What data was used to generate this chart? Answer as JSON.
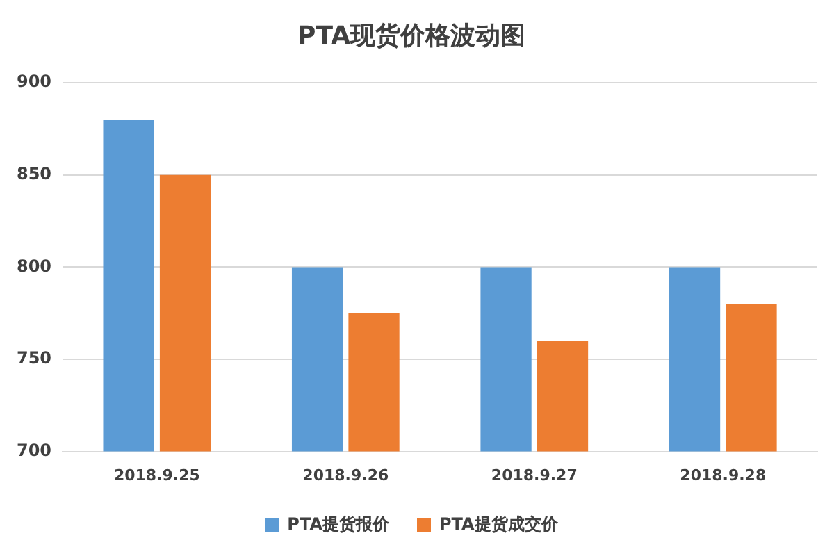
{
  "chart_data": {
    "type": "bar",
    "title": "PTA现货价格波动图",
    "categories": [
      "2018.9.25",
      "2018.9.26",
      "2018.9.27",
      "2018.9.28"
    ],
    "series": [
      {
        "name": "PTA提货报价",
        "color": "#5b9bd5",
        "values": [
          880,
          800,
          800,
          800
        ]
      },
      {
        "name": "PTA提货成交价",
        "color": "#ed7d31",
        "values": [
          850,
          775,
          760,
          780
        ]
      }
    ],
    "ylim": [
      700,
      900
    ],
    "yticks": [
      700,
      750,
      800,
      850,
      900
    ],
    "grid": "y",
    "legend": "bottom"
  }
}
